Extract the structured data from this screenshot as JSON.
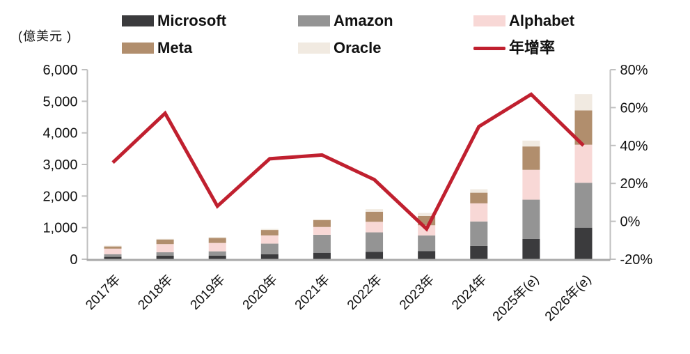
{
  "unit_label": "(億美元 )",
  "chart_data": {
    "type": "bar",
    "subtype": "stacked-bars-with-line-overlay",
    "title": "",
    "categories": [
      "2017年",
      "2018年",
      "2019年",
      "2020年",
      "2021年",
      "2022年",
      "2023年",
      "2024年",
      "2025年(e)",
      "2026年(e)"
    ],
    "series": [
      {
        "name": "Microsoft",
        "color": "#3b3b3d",
        "values": [
          75,
          110,
          110,
          160,
          205,
          235,
          260,
          420,
          645,
          1000
        ]
      },
      {
        "name": "Amazon",
        "color": "#949494",
        "values": [
          85,
          110,
          140,
          335,
          570,
          615,
          495,
          775,
          1240,
          1420
        ]
      },
      {
        "name": "Alphabet",
        "color": "#f8d8d6",
        "values": [
          175,
          260,
          265,
          260,
          245,
          335,
          320,
          575,
          945,
          1205
        ]
      },
      {
        "name": "Meta",
        "color": "#b18e6d",
        "values": [
          70,
          145,
          160,
          170,
          220,
          320,
          295,
          335,
          740,
          1085
        ]
      },
      {
        "name": "Oracle",
        "color": "#f1eae1",
        "values": [
          25,
          20,
          25,
          35,
          25,
          80,
          95,
          110,
          185,
          515
        ]
      }
    ],
    "line_series": {
      "name": "年增率",
      "color": "#c0202f",
      "axis": "right",
      "unit": "%",
      "values": [
        31,
        57,
        8,
        33,
        35,
        22,
        -4,
        50,
        67,
        40
      ]
    },
    "left_axis": {
      "unit_label": "(億美元 )",
      "min": 0,
      "max": 6000,
      "step": 1000,
      "tick_labels": [
        "0",
        "1,000",
        "2,000",
        "3,000",
        "4,000",
        "5,000",
        "6,000"
      ]
    },
    "right_axis": {
      "min": -20,
      "max": 80,
      "step": 20,
      "tick_labels": [
        "-20%",
        "0%",
        "20%",
        "40%",
        "60%",
        "80%"
      ]
    },
    "grid": false,
    "legend_position": "top",
    "colors": {
      "axis_line": "#bfbfbf",
      "baseline": "#a8a8a8",
      "text": "#111111"
    }
  }
}
